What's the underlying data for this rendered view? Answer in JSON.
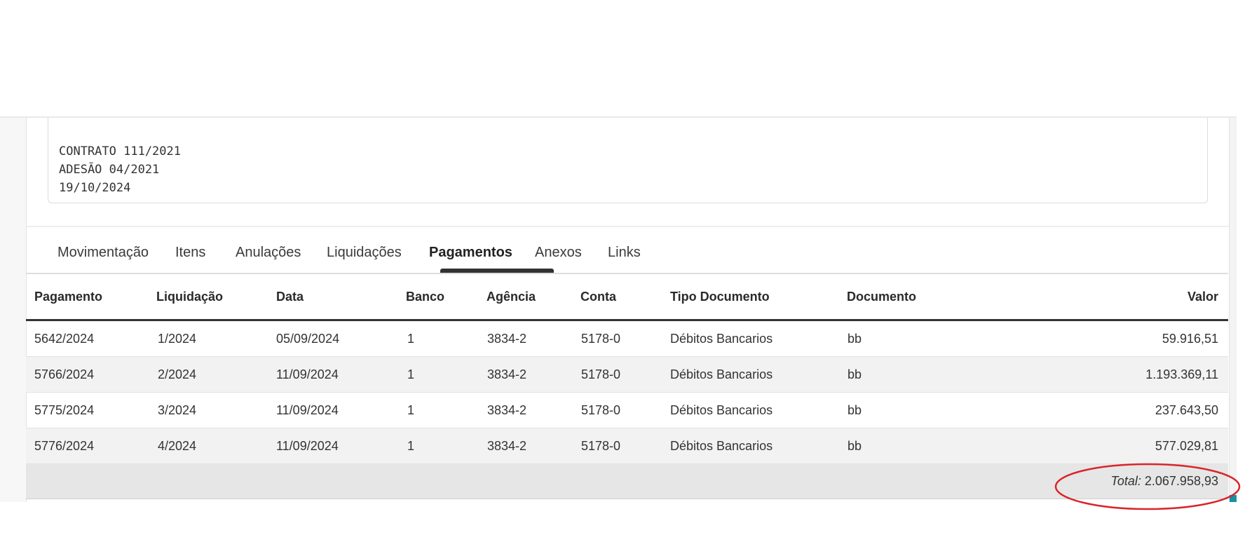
{
  "observations": {
    "lines": [
      "CONTRATO 111/2021",
      "ADESÃO 04/2021",
      "19/10/2024"
    ]
  },
  "tabs": [
    {
      "label": "Movimentação",
      "active": false
    },
    {
      "label": "Itens",
      "active": false
    },
    {
      "label": "Anulações",
      "active": false
    },
    {
      "label": "Liquidações",
      "active": false
    },
    {
      "label": "Pagamentos",
      "active": true
    },
    {
      "label": "Anexos",
      "active": false
    },
    {
      "label": "Links",
      "active": false
    }
  ],
  "table": {
    "columns": [
      "Pagamento",
      "Liquidação",
      "Data",
      "Banco",
      "Agência",
      "Conta",
      "Tipo Documento",
      "Documento",
      "Valor"
    ],
    "rows": [
      [
        "5642/2024",
        "1/2024",
        "05/09/2024",
        "1",
        "3834-2",
        "5178-0",
        "Débitos Bancarios",
        "bb",
        "59.916,51"
      ],
      [
        "5766/2024",
        "2/2024",
        "11/09/2024",
        "1",
        "3834-2",
        "5178-0",
        "Débitos Bancarios",
        "bb",
        "1.193.369,11"
      ],
      [
        "5775/2024",
        "3/2024",
        "11/09/2024",
        "1",
        "3834-2",
        "5178-0",
        "Débitos Bancarios",
        "bb",
        "237.643,50"
      ],
      [
        "5776/2024",
        "4/2024",
        "11/09/2024",
        "1",
        "3834-2",
        "5178-0",
        "Débitos Bancarios",
        "bb",
        "577.029,81"
      ]
    ],
    "total_label": "Total:",
    "total_value": "2.067.958,93"
  },
  "colors": {
    "annotation_ring": "#d9252a",
    "active_tab_underline": "#333333",
    "row_alt": "#f2f2f2",
    "footer": "#e6e6e6"
  }
}
